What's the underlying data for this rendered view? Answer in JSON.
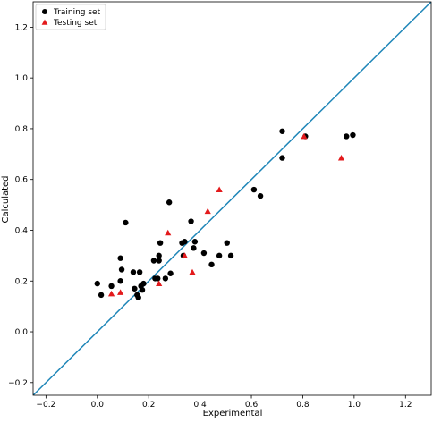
{
  "chart_data": {
    "type": "scatter",
    "title": "",
    "xlabel": "Experimental",
    "ylabel": "Calculated",
    "xlim": [
      -0.25,
      1.3
    ],
    "ylim": [
      -0.25,
      1.3
    ],
    "xticks": [
      -0.2,
      0.0,
      0.2,
      0.4,
      0.6,
      0.8,
      1.0,
      1.2
    ],
    "yticks": [
      -0.2,
      0.0,
      0.2,
      0.4,
      0.6,
      0.8,
      1.0,
      1.2
    ],
    "xtick_labels": [
      "−0.2",
      "0.0",
      "0.2",
      "0.4",
      "0.6",
      "0.8",
      "1.0",
      "1.2"
    ],
    "ytick_labels": [
      "−0.2",
      "0.0",
      "0.2",
      "0.4",
      "0.6",
      "0.8",
      "1.0",
      "1.2"
    ],
    "grid": false,
    "legend_position": "top-left",
    "reference_line": {
      "type": "identity",
      "color": "#1f86b8"
    },
    "series": [
      {
        "name": "Training set",
        "marker": "circle",
        "color": "#000000",
        "points": [
          [
            0.0,
            0.19
          ],
          [
            0.015,
            0.145
          ],
          [
            0.055,
            0.18
          ],
          [
            0.09,
            0.29
          ],
          [
            0.09,
            0.2
          ],
          [
            0.095,
            0.245
          ],
          [
            0.11,
            0.43
          ],
          [
            0.14,
            0.235
          ],
          [
            0.145,
            0.17
          ],
          [
            0.155,
            0.145
          ],
          [
            0.16,
            0.135
          ],
          [
            0.165,
            0.235
          ],
          [
            0.17,
            0.18
          ],
          [
            0.175,
            0.165
          ],
          [
            0.18,
            0.19
          ],
          [
            0.22,
            0.28
          ],
          [
            0.225,
            0.21
          ],
          [
            0.235,
            0.21
          ],
          [
            0.24,
            0.28
          ],
          [
            0.24,
            0.3
          ],
          [
            0.245,
            0.35
          ],
          [
            0.265,
            0.21
          ],
          [
            0.28,
            0.51
          ],
          [
            0.285,
            0.23
          ],
          [
            0.33,
            0.35
          ],
          [
            0.335,
            0.3
          ],
          [
            0.34,
            0.355
          ],
          [
            0.365,
            0.435
          ],
          [
            0.375,
            0.33
          ],
          [
            0.38,
            0.355
          ],
          [
            0.415,
            0.31
          ],
          [
            0.445,
            0.265
          ],
          [
            0.475,
            0.3
          ],
          [
            0.505,
            0.35
          ],
          [
            0.52,
            0.3
          ],
          [
            0.61,
            0.56
          ],
          [
            0.635,
            0.535
          ],
          [
            0.72,
            0.79
          ],
          [
            0.72,
            0.685
          ],
          [
            0.81,
            0.77
          ],
          [
            0.97,
            0.77
          ],
          [
            0.995,
            0.775
          ]
        ]
      },
      {
        "name": "Testing set",
        "marker": "triangle",
        "color": "#e31a1c",
        "points": [
          [
            0.055,
            0.15
          ],
          [
            0.09,
            0.155
          ],
          [
            0.24,
            0.19
          ],
          [
            0.275,
            0.39
          ],
          [
            0.34,
            0.3
          ],
          [
            0.37,
            0.235
          ],
          [
            0.43,
            0.475
          ],
          [
            0.475,
            0.56
          ],
          [
            0.805,
            0.77
          ],
          [
            0.95,
            0.685
          ]
        ]
      }
    ]
  }
}
